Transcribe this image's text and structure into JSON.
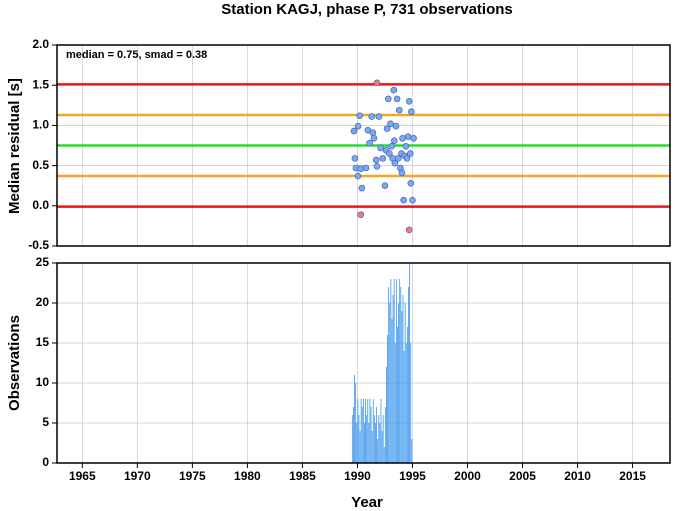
{
  "chart_data": [
    {
      "type": "scatter",
      "title": "Station KAGJ, phase P, 731 observations",
      "annotation": "median = 0.75, smad = 0.38",
      "ylabel": "Median residual [s]",
      "xlim": [
        1962.7,
        2018.4
      ],
      "ylim": [
        -0.5,
        2.0
      ],
      "yticks": [
        {
          "value": 2.0,
          "label": "2.0"
        },
        1.5,
        {
          "value": 1.0,
          "label": "1.0"
        },
        0.5,
        {
          "value": 0.0,
          "label": "0.0"
        },
        -0.5
      ],
      "grid": true,
      "reference_lines": [
        {
          "value": 1.51,
          "color": "#e8141c"
        },
        {
          "value": 1.13,
          "color": "#f5a623"
        },
        {
          "value": 0.75,
          "color": "#22e02a"
        },
        {
          "value": 0.37,
          "color": "#f5a623"
        },
        {
          "value": -0.01,
          "color": "#e8141c"
        }
      ],
      "series": [
        {
          "color": "#7aa6f2",
          "x": [
            1989.68,
            1990.05,
            1989.77,
            1989.86,
            1990.05,
            1990.2,
            1990.4,
            1990.3,
            1990.77,
            1990.95,
            1991.1,
            1991.3,
            1991.4,
            1991.5,
            1991.7,
            1991.77,
            1991.95,
            1992.1,
            1992.3,
            1992.5,
            1992.6,
            1992.7,
            1992.8,
            1992.9,
            1993.0,
            1993.1,
            1993.2,
            1993.3,
            1993.35,
            1993.4,
            1993.5,
            1993.6,
            1993.7,
            1993.8,
            1993.9,
            1994.0,
            1994.05,
            1994.1,
            1994.2,
            1994.3,
            1994.4,
            1994.5,
            1994.6,
            1994.7,
            1994.8,
            1994.85,
            1994.9,
            1995.0,
            1995.1
          ],
          "values": [
            0.93,
            0.99,
            0.59,
            0.47,
            0.37,
            1.12,
            0.22,
            0.46,
            0.47,
            0.94,
            0.78,
            1.11,
            0.91,
            0.84,
            0.57,
            0.49,
            1.11,
            0.72,
            0.59,
            0.25,
            0.69,
            0.96,
            1.33,
            0.65,
            1.02,
            0.74,
            0.59,
            1.44,
            0.81,
            0.53,
            0.99,
            1.33,
            0.59,
            1.19,
            0.47,
            0.65,
            0.41,
            0.84,
            0.07,
            0.62,
            0.74,
            0.59,
            0.86,
            1.3,
            0.65,
            0.28,
            1.17,
            0.07,
            0.84
          ]
        },
        {
          "color": "#f47a70",
          "x": [
            1990.3,
            1991.77,
            1994.7
          ],
          "values": [
            -0.11,
            1.53,
            -0.3
          ]
        }
      ]
    },
    {
      "type": "histogram",
      "xlabel": "Year",
      "ylabel": "Observations",
      "color": "#3d97ee",
      "xlim": [
        1962.7,
        2018.4
      ],
      "ylim": [
        0,
        25
      ],
      "xticks": [
        1965,
        1970,
        1975,
        1980,
        1985,
        1990,
        1995,
        2000,
        2005,
        2010,
        2015
      ],
      "yticks": [
        0,
        5,
        10,
        15,
        20,
        25
      ],
      "grid": true,
      "bins": [
        1989.5,
        1989.6,
        1989.7,
        1989.8,
        1989.9,
        1990.0,
        1990.1,
        1990.2,
        1990.3,
        1990.4,
        1990.5,
        1990.6,
        1990.7,
        1990.8,
        1990.9,
        1991.0,
        1991.1,
        1991.2,
        1991.3,
        1991.4,
        1991.5,
        1991.6,
        1991.7,
        1991.8,
        1991.9,
        1992.0,
        1992.1,
        1992.2,
        1992.3,
        1992.4,
        1992.5,
        1992.6,
        1992.7,
        1992.8,
        1992.9,
        1993.0,
        1993.1,
        1993.2,
        1993.3,
        1993.4,
        1993.5,
        1993.6,
        1993.7,
        1993.8,
        1993.9,
        1994.0,
        1994.1,
        1994.2,
        1994.3,
        1994.4,
        1994.5,
        1994.6,
        1994.7,
        1994.8,
        1994.9,
        1995.0
      ],
      "values": [
        6,
        7,
        11,
        10,
        5,
        8,
        6,
        4,
        8,
        7,
        8,
        5,
        8,
        6,
        8,
        5,
        8,
        7,
        4,
        8,
        6,
        5,
        7,
        3,
        6,
        5,
        8,
        4,
        6,
        2,
        7,
        12,
        16,
        22,
        20,
        23,
        18,
        21,
        23,
        15,
        23,
        17,
        20,
        23,
        22,
        19,
        21,
        14,
        20,
        15,
        17,
        22,
        25,
        15,
        3
      ]
    }
  ]
}
